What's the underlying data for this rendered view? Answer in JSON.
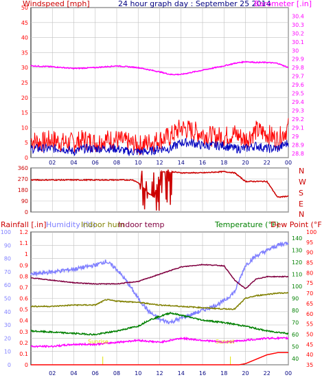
{
  "header": {
    "wind_label": "Windspeed [mph]",
    "title": "24 hour graph day : September 25 2014",
    "baro_label": "Barometer [.in]"
  },
  "dir_letters": [
    "N",
    "W",
    "S",
    "E",
    "N"
  ],
  "lower": {
    "rain_label": "Rainfall [.in]",
    "hum_label": "Humidity (%)",
    "inhum_label": "Indoor hum",
    "intemp_label": "Indoor temp",
    "temp_label": "Temperature (°F)",
    "dew_label": "Dew Point (°F)",
    "sunrise_label": "Sunrise",
    "sunset_label": "Sunset"
  },
  "colors": {
    "wind": "#ff0000",
    "avgwind": "#0000c0",
    "baro": "#ff00ff",
    "dir": "#cc0000",
    "rain": "#ff0000",
    "humidity": "#8080ff",
    "inhum": "#808000",
    "intemp": "#800040",
    "temp": "#008000",
    "dew": "#ff00ff",
    "grid": "#c0c0c0"
  },
  "chart_data": [
    {
      "type": "line",
      "title": "24 hour graph day : September 25 2014",
      "x_ticks": [
        "02",
        "04",
        "06",
        "08",
        "10",
        "12",
        "14",
        "16",
        "18",
        "20",
        "22",
        "00"
      ],
      "left_axis": {
        "label": "Windspeed [mph]",
        "ticks": [
          0,
          5,
          10,
          15,
          20,
          25,
          30,
          35,
          40,
          45,
          50
        ],
        "ylim": [
          0,
          50
        ]
      },
      "right_axis": {
        "label": "Barometer [.in]",
        "ticks": [
          "28.8",
          "28.9",
          "29",
          "29.1",
          "29.2",
          "29.3",
          "29.4",
          "29.5",
          "29.6",
          "29.7",
          "29.8",
          "29.9",
          "30",
          "30.1",
          "30.2",
          "30.3",
          "30.4"
        ],
        "ylim": [
          28.75,
          30.5
        ]
      },
      "series": [
        {
          "name": "Windspeed [mph]",
          "axis": "left",
          "x": [
            0,
            1,
            2,
            3,
            4,
            5,
            6,
            7,
            8,
            9,
            10,
            11,
            12,
            13,
            14,
            15,
            16,
            17,
            18,
            19,
            20,
            21,
            22,
            23,
            24
          ],
          "values": [
            6,
            5,
            6,
            5,
            5,
            6,
            5,
            6,
            6,
            5,
            4,
            5,
            6,
            7,
            10,
            9,
            8,
            7,
            7,
            8,
            6,
            9,
            8,
            6,
            10
          ]
        },
        {
          "x": [
            0,
            1,
            2,
            3,
            4,
            5,
            6,
            7,
            8,
            9,
            10,
            11,
            12,
            13,
            14,
            15,
            16,
            17,
            18,
            19,
            20,
            21,
            22,
            23,
            24
          ],
          "values": [
            3,
            3,
            3,
            3,
            2,
            3,
            3,
            3,
            3,
            2,
            2,
            2,
            3,
            3,
            5,
            5,
            4,
            4,
            4,
            3,
            3,
            4,
            3,
            3,
            5
          ]
        },
        {
          "name": "Barometer [.in]",
          "axis": "right",
          "x": [
            0,
            2,
            4,
            6,
            8,
            10,
            12,
            13,
            14,
            16,
            18,
            19,
            20,
            21,
            22,
            23,
            24
          ],
          "values": [
            29.82,
            29.81,
            29.79,
            29.8,
            29.82,
            29.8,
            29.75,
            29.72,
            29.72,
            29.77,
            29.82,
            29.85,
            29.87,
            29.86,
            29.86,
            29.85,
            29.8
          ]
        }
      ]
    },
    {
      "type": "line",
      "left_axis": {
        "ticks": [
          0,
          90,
          180,
          270,
          360
        ],
        "ylim": [
          0,
          360
        ]
      },
      "x_ticks": [
        "02",
        "04",
        "06",
        "08",
        "10",
        "12",
        "14",
        "16",
        "18",
        "20",
        "22",
        "00"
      ],
      "series": [
        {
          "x": [
            0,
            2,
            4,
            6,
            8,
            9.5,
            10,
            10.5,
            11,
            11.5,
            12,
            12.5,
            13,
            14,
            16,
            18,
            19,
            20,
            21,
            22,
            23,
            24
          ],
          "values": [
            262,
            262,
            262,
            262,
            262,
            262,
            240,
            200,
            150,
            120,
            330,
            330,
            330,
            320,
            320,
            330,
            320,
            250,
            250,
            250,
            120,
            130
          ]
        }
      ]
    },
    {
      "type": "line",
      "x_ticks": [
        "02",
        "04",
        "06",
        "08",
        "10",
        "12",
        "14",
        "16",
        "18",
        "20",
        "22",
        "00"
      ],
      "sunrise_hour": 6.7,
      "sunset_hour": 18.6,
      "axes": {
        "rainfall": {
          "ticks": [
            "0",
            "0.1",
            "0.2",
            "0.3",
            "0.4",
            "0.5",
            "0.6",
            "0.7",
            "0.8",
            "0.9",
            "1",
            "1.1",
            "1.2"
          ],
          "ylim": [
            0,
            1.2
          ]
        },
        "humidity": {
          "ticks": [
            "0",
            "10",
            "20",
            "30",
            "40",
            "50",
            "60",
            "70",
            "80",
            "90",
            "100"
          ],
          "ylim": [
            0,
            100
          ]
        },
        "temperature": {
          "ticks": [
            "40",
            "50",
            "60",
            "70",
            "80",
            "90",
            "100",
            "110",
            "120",
            "130",
            "140"
          ],
          "ylim": [
            35,
            145
          ]
        },
        "dew_point": {
          "ticks": [
            "35",
            "40",
            "45",
            "50",
            "55",
            "60",
            "65",
            "70",
            "75",
            "80",
            "85",
            "90",
            "95",
            "100"
          ],
          "ylim": [
            35,
            100
          ]
        }
      },
      "series": [
        {
          "name": "Humidity (%)",
          "axis": "humidity",
          "x": [
            0,
            2,
            4,
            6,
            7,
            8,
            9,
            10,
            11,
            12,
            13,
            14,
            15,
            16,
            17,
            18,
            19,
            20,
            21,
            22,
            23,
            24
          ],
          "values": [
            68,
            70,
            72,
            75,
            78,
            72,
            62,
            50,
            40,
            34,
            32,
            35,
            38,
            41,
            44,
            48,
            55,
            75,
            82,
            86,
            90,
            92
          ]
        },
        {
          "name": "Indoor hum",
          "axis": "humidity",
          "x": [
            0,
            2,
            4,
            6,
            7,
            8,
            10,
            12,
            14,
            16,
            18,
            19,
            20,
            21,
            22,
            23,
            24
          ],
          "values": [
            44,
            44,
            45,
            45,
            49,
            48,
            47,
            45,
            44,
            43,
            42,
            42,
            50,
            52,
            53,
            54,
            54
          ]
        },
        {
          "name": "Indoor temp",
          "axis": "temperature",
          "x": [
            0,
            2,
            4,
            6,
            8,
            10,
            12,
            14,
            16,
            18,
            19,
            20,
            21,
            22,
            23,
            24
          ],
          "values": [
            107,
            105,
            103,
            102,
            102,
            104,
            110,
            116,
            118,
            117,
            105,
            98,
            106,
            108,
            108,
            108
          ]
        },
        {
          "name": "Temperature (°F)",
          "axis": "temperature",
          "x": [
            0,
            2,
            4,
            6,
            8,
            10,
            11,
            12,
            13,
            14,
            16,
            18,
            20,
            22,
            24
          ],
          "values": [
            63,
            62,
            61,
            60,
            63,
            67,
            72,
            75,
            78,
            76,
            72,
            70,
            67,
            63,
            61
          ]
        },
        {
          "name": "Dew Point (°F)",
          "axis": "dew_point",
          "x": [
            0,
            2,
            4,
            6,
            8,
            10,
            12,
            14,
            16,
            18,
            20,
            22,
            24
          ],
          "values": [
            44,
            44,
            45,
            45,
            46,
            47,
            46,
            48,
            47,
            46,
            47,
            48,
            48
          ]
        },
        {
          "name": "Rainfall [.in]",
          "axis": "rainfall",
          "x": [
            0,
            19.4,
            20,
            21,
            22,
            23,
            24
          ],
          "values": [
            0,
            0,
            0.01,
            0.05,
            0.09,
            0.11,
            0.11
          ]
        }
      ]
    }
  ]
}
